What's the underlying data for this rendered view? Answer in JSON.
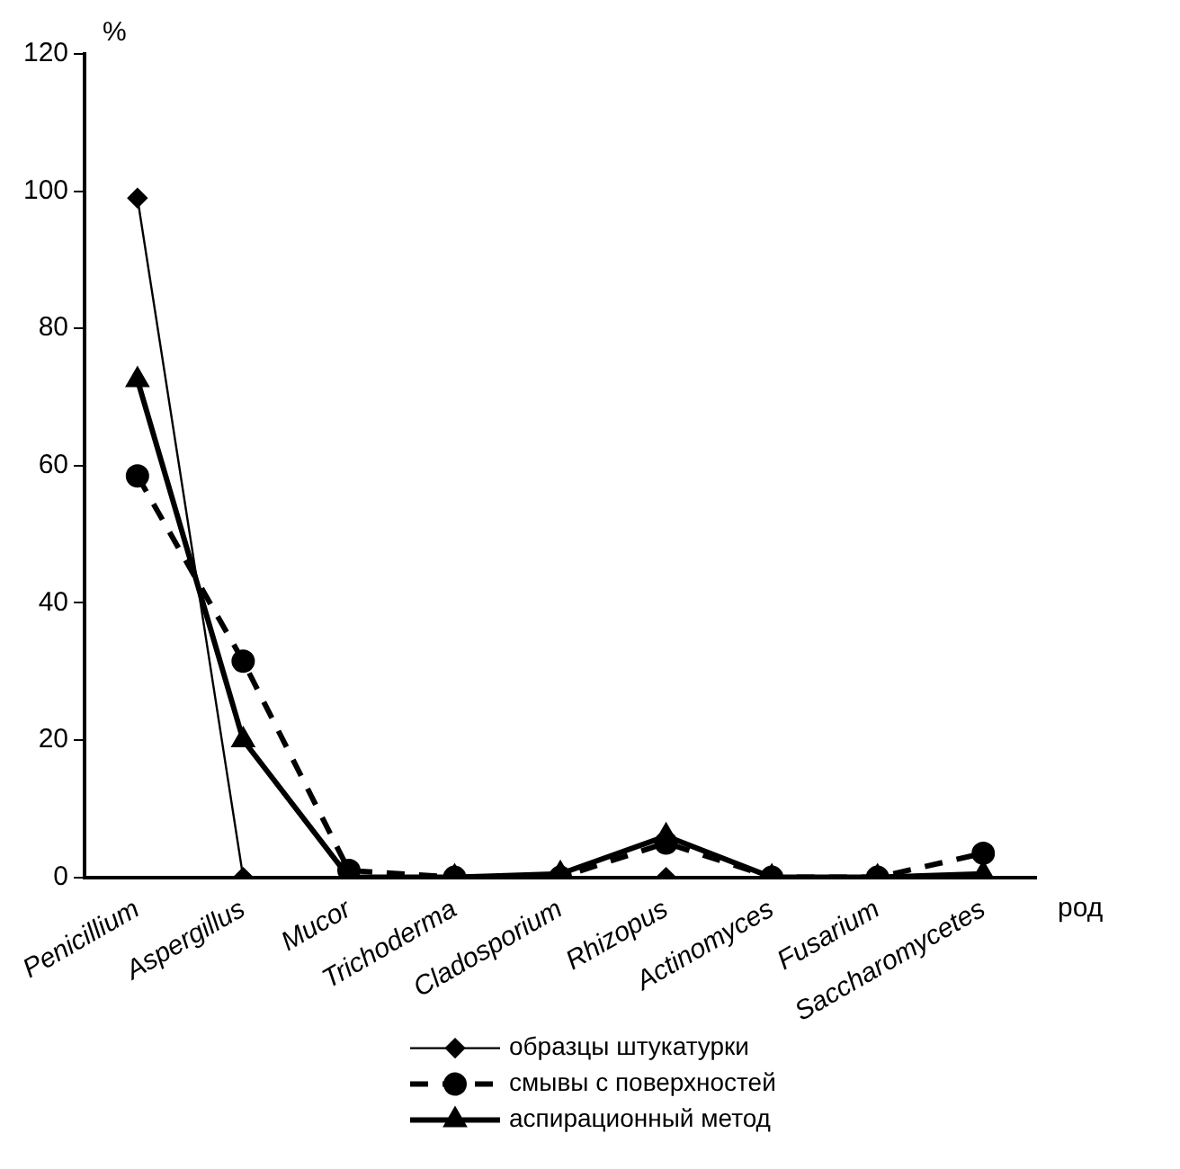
{
  "chart_data": {
    "type": "line",
    "ylabel": "%",
    "xlabel": "род",
    "categories": [
      "Penicillium",
      "Aspergillus",
      "Mucor",
      "Trichoderma",
      "Cladosporium",
      "Rhizopus",
      "Actinomyces",
      "Fusarium",
      "Saccharomycetes"
    ],
    "series": [
      {
        "name": "образцы штукатурки",
        "color": "#000000",
        "marker": "diamond",
        "line_style": "solid",
        "values": [
          99,
          0,
          0,
          0,
          0,
          0,
          0,
          0,
          0
        ]
      },
      {
        "name": "смывы с поверхностей",
        "color": "#000000",
        "marker": "circle",
        "line_style": "dashed",
        "values": [
          58.5,
          31.5,
          1,
          0,
          0,
          5,
          0,
          0,
          3.5
        ]
      },
      {
        "name": "аспирационный метод",
        "color": "#000000",
        "marker": "triangle",
        "line_style": "solid",
        "values": [
          72.5,
          20,
          0,
          0,
          0.5,
          6,
          0,
          0,
          0.5
        ]
      }
    ],
    "ylim": [
      0,
      120
    ],
    "yticks": [
      0,
      20,
      40,
      60,
      80,
      100,
      120
    ],
    "grid": false,
    "legend": "bottom"
  }
}
